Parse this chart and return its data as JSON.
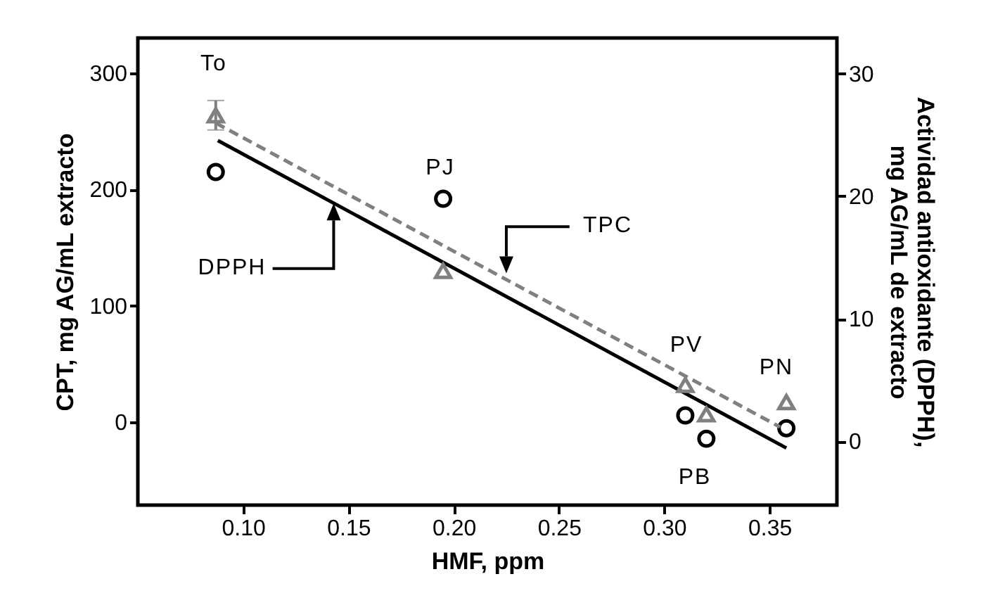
{
  "chart_data": {
    "type": "scatter",
    "xlabel": "HMF, ppm",
    "ylabel": "CPT, mg AG/mL extracto",
    "y2label": "Actividad antioxidante (DPPH),\nmg AG/mL de extracto",
    "xlim": [
      0.05,
      0.382
    ],
    "xticks": [
      {
        "value": 0.1,
        "label": "0.10"
      },
      0.15,
      {
        "value": 0.2,
        "label": "0.20"
      },
      0.25,
      {
        "value": 0.3,
        "label": "0.30"
      },
      0.35
    ],
    "ylim": [
      -71,
      330
    ],
    "yticks": [
      0,
      100,
      200,
      300
    ],
    "y2lim": [
      -5.2,
      32.9
    ],
    "y2ticks": [
      0,
      10,
      20,
      30
    ],
    "grid": false,
    "series": [
      {
        "marker": "circle",
        "color": "#000000",
        "x": [
          0.087,
          0.195,
          0.31,
          0.32,
          0.358
        ],
        "values": [
          215,
          192,
          6,
          -14,
          -5
        ]
      },
      {
        "marker": "triangle",
        "axis": "y2",
        "color": "#808080",
        "x": [
          0.087,
          0.195,
          0.31,
          0.32,
          0.358
        ],
        "values": [
          26.6,
          13.9,
          4.6,
          2.2,
          3.2
        ],
        "errors": [
          1.2,
          null,
          null,
          null,
          null
        ]
      },
      {
        "type": "line",
        "marker": "none",
        "line_style": "solid",
        "color": "#000000",
        "x": [
          0.088,
          0.358
        ],
        "values": [
          242,
          -22
        ]
      },
      {
        "type": "line",
        "marker": "none",
        "line_style": "dashed",
        "color": "#808080",
        "x": [
          0.087,
          0.355
        ],
        "values": [
          257,
          -4
        ]
      }
    ],
    "annotations": [
      "To",
      "PJ",
      "PV",
      "PN",
      "PB",
      "DPPH",
      "TPC"
    ]
  }
}
